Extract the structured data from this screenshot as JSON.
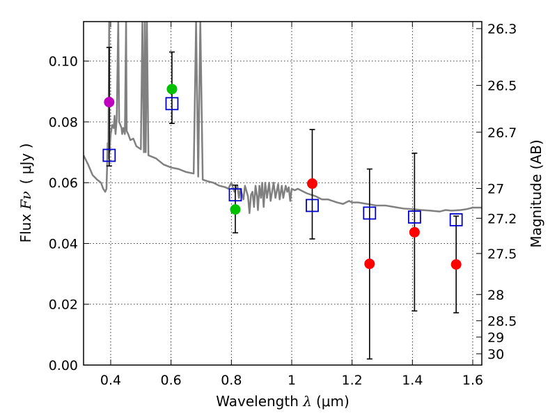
{
  "chart_data": {
    "type": "scatter",
    "xlabel": {
      "prefix": "Wavelength  ",
      "symbol": "λ",
      "unit": "(μm)"
    },
    "ylabel": {
      "prefix": "Flux  ",
      "symbol": "Fν",
      "unit": "( μJy )"
    },
    "y2label": "Magnitude (AB)",
    "xlim": [
      0.31,
      1.63
    ],
    "ylim": [
      0.0,
      0.113
    ],
    "grid": true,
    "x_ticks": [
      0.4,
      0.6,
      0.8,
      1.0,
      1.2,
      1.4,
      1.6
    ],
    "x_tick_labels": [
      "0.4",
      "0.6",
      "0.8",
      "1",
      "1.2",
      "1.4",
      "1.6"
    ],
    "y_ticks": [
      0.0,
      0.02,
      0.04,
      0.06,
      0.08,
      0.1
    ],
    "y_tick_labels": [
      "0.00",
      "0.02",
      "0.04",
      "0.06",
      "0.08",
      "0.10"
    ],
    "mag_ticks": [
      {
        "label": "26.3",
        "flux": 0.1107
      },
      {
        "label": "26.5",
        "flux": 0.092
      },
      {
        "label": "26.7",
        "flux": 0.0766
      },
      {
        "label": "27",
        "flux": 0.0581
      },
      {
        "label": "27.2",
        "flux": 0.0483
      },
      {
        "label": "27.5",
        "flux": 0.0367
      },
      {
        "label": "28",
        "flux": 0.0232
      },
      {
        "label": "28.5",
        "flux": 0.0146
      },
      {
        "label": "29",
        "flux": 0.0092
      },
      {
        "label": "30",
        "flux": 0.0037
      }
    ],
    "observed": [
      {
        "x": 0.395,
        "y": 0.0865,
        "err_low": 0.0655,
        "err_high": 0.1045,
        "color": "#bf00bf"
      },
      {
        "x": 0.603,
        "y": 0.0908,
        "err_low": 0.0795,
        "err_high": 0.103,
        "color": "#00c000"
      },
      {
        "x": 0.813,
        "y": 0.0512,
        "err_low": 0.0435,
        "err_high": 0.0592,
        "color": "#00c000"
      },
      {
        "x": 1.068,
        "y": 0.0597,
        "err_low": 0.0415,
        "err_high": 0.0775,
        "color": "#ff0000"
      },
      {
        "x": 1.258,
        "y": 0.0333,
        "err_low": 0.002,
        "err_high": 0.0645,
        "color": "#ff0000"
      },
      {
        "x": 1.407,
        "y": 0.0437,
        "err_low": 0.0178,
        "err_high": 0.0697,
        "color": "#ff0000"
      },
      {
        "x": 1.545,
        "y": 0.0331,
        "err_low": 0.0172,
        "err_high": 0.049,
        "color": "#ff0000"
      }
    ],
    "model_points": [
      {
        "x": 0.395,
        "y": 0.069
      },
      {
        "x": 0.603,
        "y": 0.086
      },
      {
        "x": 0.813,
        "y": 0.056
      },
      {
        "x": 1.068,
        "y": 0.0525
      },
      {
        "x": 1.258,
        "y": 0.05
      },
      {
        "x": 1.407,
        "y": 0.0487
      },
      {
        "x": 1.545,
        "y": 0.0478
      }
    ],
    "model_points_color": "#0000cc",
    "sed_color": "#808080",
    "sed_spectrum": [
      [
        0.31,
        0.069
      ],
      [
        0.325,
        0.066
      ],
      [
        0.34,
        0.0625
      ],
      [
        0.355,
        0.061
      ],
      [
        0.368,
        0.06
      ],
      [
        0.375,
        0.058
      ],
      [
        0.382,
        0.057
      ],
      [
        0.386,
        0.058
      ],
      [
        0.388,
        0.065
      ],
      [
        0.39,
        0.073
      ],
      [
        0.392,
        0.068
      ],
      [
        0.395,
        0.113
      ],
      [
        0.396,
        0.07
      ],
      [
        0.4,
        0.076
      ],
      [
        0.405,
        0.079
      ],
      [
        0.41,
        0.078
      ],
      [
        0.413,
        0.082
      ],
      [
        0.416,
        0.076
      ],
      [
        0.42,
        0.081
      ],
      [
        0.425,
        0.113
      ],
      [
        0.428,
        0.08
      ],
      [
        0.432,
        0.079
      ],
      [
        0.436,
        0.078
      ],
      [
        0.438,
        0.076
      ],
      [
        0.442,
        0.078
      ],
      [
        0.447,
        0.076
      ],
      [
        0.451,
        0.113
      ],
      [
        0.453,
        0.077
      ],
      [
        0.458,
        0.076
      ],
      [
        0.465,
        0.074
      ],
      [
        0.475,
        0.0745
      ],
      [
        0.485,
        0.072
      ],
      [
        0.5,
        0.071
      ],
      [
        0.505,
        0.113
      ],
      [
        0.51,
        0.07
      ],
      [
        0.513,
        0.113
      ],
      [
        0.516,
        0.07
      ],
      [
        0.52,
        0.113
      ],
      [
        0.525,
        0.069
      ],
      [
        0.55,
        0.068
      ],
      [
        0.575,
        0.066
      ],
      [
        0.6,
        0.065
      ],
      [
        0.625,
        0.0645
      ],
      [
        0.65,
        0.0635
      ],
      [
        0.675,
        0.063
      ],
      [
        0.683,
        0.113
      ],
      [
        0.69,
        0.062
      ],
      [
        0.697,
        0.113
      ],
      [
        0.705,
        0.061
      ],
      [
        0.72,
        0.0605
      ],
      [
        0.74,
        0.06
      ],
      [
        0.76,
        0.059
      ],
      [
        0.78,
        0.0585
      ],
      [
        0.79,
        0.058
      ],
      [
        0.8,
        0.06
      ],
      [
        0.81,
        0.057
      ],
      [
        0.82,
        0.059
      ],
      [
        0.825,
        0.055
      ],
      [
        0.83,
        0.058
      ],
      [
        0.84,
        0.0545
      ],
      [
        0.845,
        0.059
      ],
      [
        0.855,
        0.0555
      ],
      [
        0.86,
        0.05
      ],
      [
        0.865,
        0.056
      ],
      [
        0.87,
        0.057
      ],
      [
        0.875,
        0.052
      ],
      [
        0.88,
        0.059
      ],
      [
        0.885,
        0.0555
      ],
      [
        0.888,
        0.051
      ],
      [
        0.893,
        0.059
      ],
      [
        0.898,
        0.055
      ],
      [
        0.902,
        0.06
      ],
      [
        0.907,
        0.052
      ],
      [
        0.912,
        0.06
      ],
      [
        0.918,
        0.055
      ],
      [
        0.925,
        0.06
      ],
      [
        0.93,
        0.054
      ],
      [
        0.94,
        0.06
      ],
      [
        0.946,
        0.055
      ],
      [
        0.955,
        0.0595
      ],
      [
        0.96,
        0.0545
      ],
      [
        0.967,
        0.059
      ],
      [
        0.972,
        0.055
      ],
      [
        0.98,
        0.059
      ],
      [
        0.985,
        0.057
      ],
      [
        0.99,
        0.0585
      ],
      [
        0.995,
        0.054
      ],
      [
        1.0,
        0.058
      ],
      [
        1.01,
        0.0575
      ],
      [
        1.02,
        0.058
      ],
      [
        1.03,
        0.0575
      ],
      [
        1.05,
        0.0565
      ],
      [
        1.08,
        0.0555
      ],
      [
        1.1,
        0.0545
      ],
      [
        1.12,
        0.0545
      ],
      [
        1.15,
        0.0535
      ],
      [
        1.17,
        0.053
      ],
      [
        1.19,
        0.054
      ],
      [
        1.2,
        0.0535
      ],
      [
        1.22,
        0.0535
      ],
      [
        1.25,
        0.053
      ],
      [
        1.28,
        0.0525
      ],
      [
        1.31,
        0.0525
      ],
      [
        1.34,
        0.052
      ],
      [
        1.37,
        0.0515
      ],
      [
        1.4,
        0.0513
      ],
      [
        1.43,
        0.051
      ],
      [
        1.46,
        0.0508
      ],
      [
        1.49,
        0.0505
      ],
      [
        1.51,
        0.051
      ],
      [
        1.53,
        0.0508
      ],
      [
        1.56,
        0.051
      ],
      [
        1.58,
        0.0513
      ],
      [
        1.6,
        0.0518
      ],
      [
        1.63,
        0.0518
      ]
    ]
  }
}
